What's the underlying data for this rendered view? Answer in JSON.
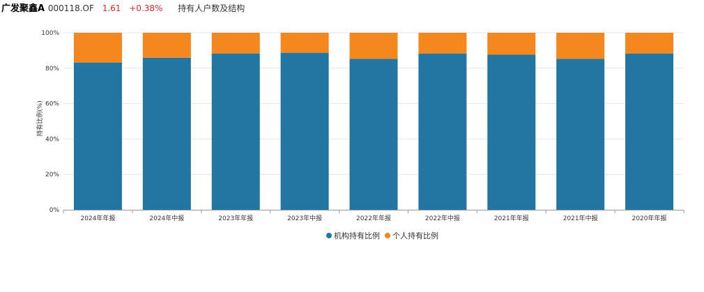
{
  "header": {
    "fund_name": "广发聚鑫A",
    "fund_code": "000118.OF",
    "price": "1.61",
    "change": "+0.38%",
    "section_title": "持有人户数及结构"
  },
  "colors": {
    "institution": "#2476a2",
    "individual": "#f5871f",
    "price_up": "#e0262b"
  },
  "chart_data": {
    "type": "bar",
    "stacked": true,
    "categories": [
      "2024年年报",
      "2024年中报",
      "2023年年报",
      "2023年中报",
      "2022年年报",
      "2022年中报",
      "2021年年报",
      "2021年中报",
      "2020年年报"
    ],
    "series": [
      {
        "name": "机构持有比例",
        "values": [
          83.2,
          85.9,
          88.3,
          88.7,
          85.3,
          88.3,
          87.6,
          85.3,
          88.3
        ]
      },
      {
        "name": "个人持有比例",
        "values": [
          16.8,
          14.1,
          11.7,
          11.3,
          14.7,
          11.7,
          12.4,
          14.7,
          11.7
        ]
      }
    ],
    "ylabel": "持有比例(%)",
    "xlabel": "",
    "ylim": [
      0,
      100
    ],
    "yticks": [
      "0%",
      "20%",
      "40%",
      "60%",
      "80%",
      "100%"
    ],
    "grid": true,
    "legend_position": "bottom"
  }
}
